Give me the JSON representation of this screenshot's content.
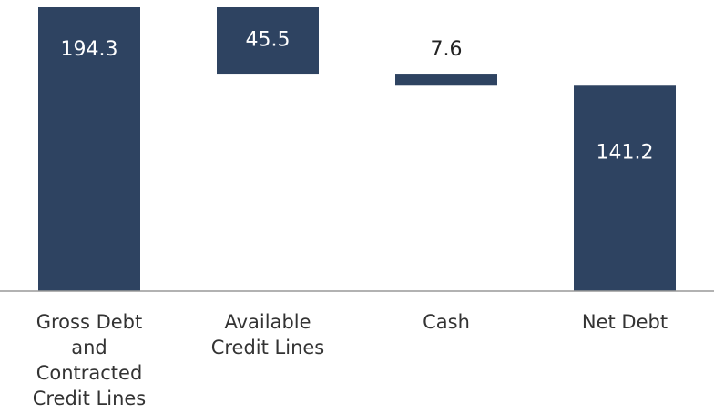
{
  "chart_data": {
    "type": "waterfall",
    "categories": [
      "Gross Debt and Contracted Credit Lines",
      "Available Credit Lines",
      "Cash",
      "Net Debt"
    ],
    "values": [
      194.3,
      45.5,
      7.6,
      141.2
    ],
    "measures": [
      "absolute",
      "decrease",
      "decrease",
      "total"
    ],
    "color": "#2e4361"
  }
}
